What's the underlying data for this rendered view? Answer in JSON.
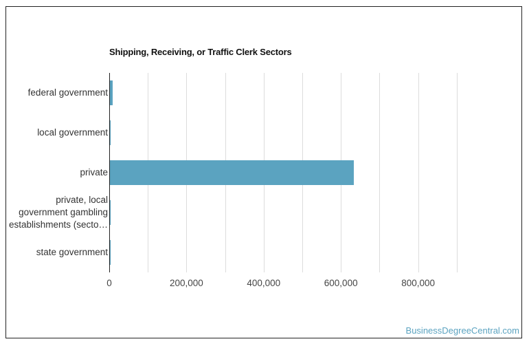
{
  "chart_data": {
    "type": "bar",
    "orientation": "horizontal",
    "title": "Shipping, Receiving, or Traffic Clerk Sectors",
    "xlabel": "",
    "ylabel": "",
    "categories": [
      "federal government",
      "local government",
      "private",
      "private, local government gambling establishments (secto…",
      "state government"
    ],
    "category_display_lines": [
      [
        "federal government"
      ],
      [
        "local government"
      ],
      [
        "private"
      ],
      [
        "private, local",
        "government gambling",
        "establishments (secto…"
      ],
      [
        "state government"
      ]
    ],
    "values": [
      7000,
      1500,
      632000,
      1500,
      1000
    ],
    "xlim": [
      0,
      1000000
    ],
    "x_ticks": [
      0,
      200000,
      400000,
      600000,
      800000
    ],
    "x_tick_labels": [
      "0",
      "200,000",
      "400,000",
      "600,000",
      "800,000"
    ],
    "grid": true,
    "legend": null,
    "bar_color": "#5ba3c0"
  },
  "watermark": "BusinessDegreeCentral.com"
}
